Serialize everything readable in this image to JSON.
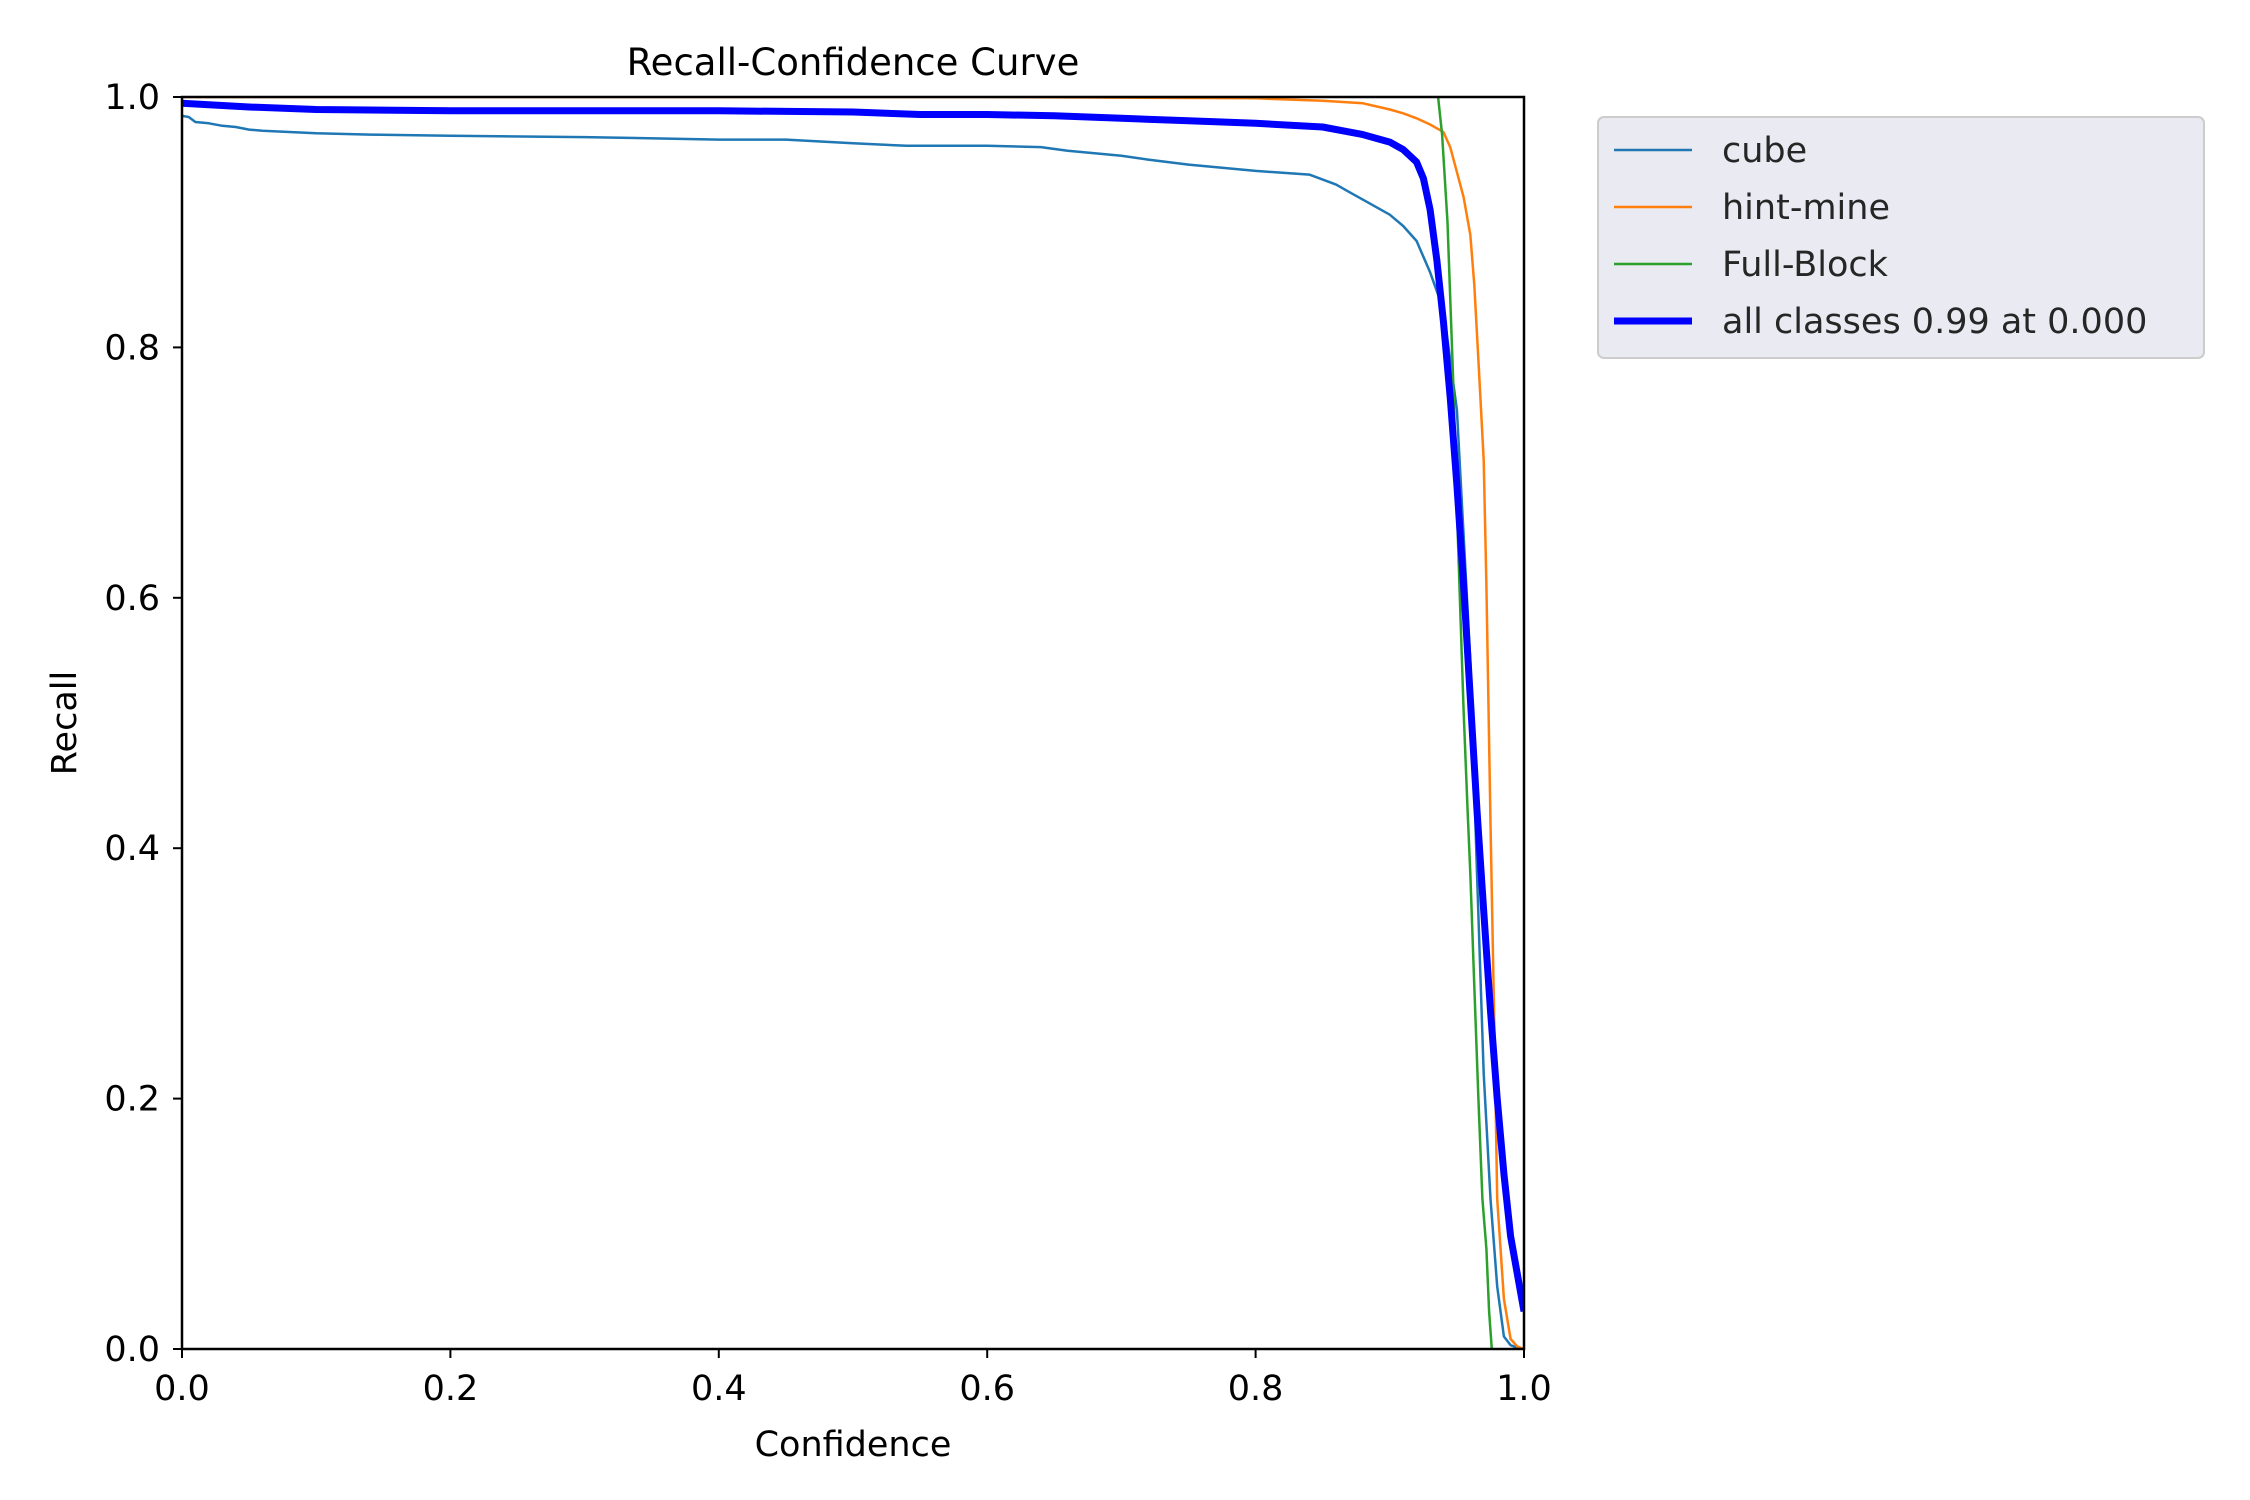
{
  "chart_data": {
    "type": "line",
    "title": "Recall-Confidence Curve",
    "xlabel": "Confidence",
    "ylabel": "Recall",
    "xlim": [
      0,
      1
    ],
    "ylim": [
      0,
      1
    ],
    "xticks": [
      "0.0",
      "0.2",
      "0.4",
      "0.6",
      "0.8",
      "1.0"
    ],
    "yticks": [
      "0.0",
      "0.2",
      "0.4",
      "0.6",
      "0.8",
      "1.0"
    ],
    "grid": false,
    "legend_position": "outside-top-right",
    "series": [
      {
        "name": "cube",
        "color": "#1f77b4",
        "width": 2.5,
        "x": [
          0.0,
          0.005,
          0.01,
          0.02,
          0.03,
          0.04,
          0.05,
          0.06,
          0.1,
          0.14,
          0.2,
          0.3,
          0.4,
          0.45,
          0.5,
          0.54,
          0.6,
          0.64,
          0.66,
          0.7,
          0.72,
          0.75,
          0.78,
          0.8,
          0.84,
          0.86,
          0.87,
          0.88,
          0.89,
          0.9,
          0.91,
          0.92,
          0.93,
          0.94,
          0.95,
          0.96,
          0.965,
          0.97,
          0.975,
          0.98,
          0.985,
          0.99,
          0.995,
          1.0
        ],
        "y": [
          0.985,
          0.984,
          0.98,
          0.979,
          0.977,
          0.976,
          0.974,
          0.973,
          0.971,
          0.97,
          0.969,
          0.968,
          0.966,
          0.966,
          0.963,
          0.961,
          0.961,
          0.96,
          0.957,
          0.953,
          0.95,
          0.946,
          0.943,
          0.941,
          0.938,
          0.93,
          0.924,
          0.918,
          0.912,
          0.906,
          0.897,
          0.885,
          0.86,
          0.83,
          0.75,
          0.55,
          0.38,
          0.22,
          0.12,
          0.05,
          0.01,
          0.003,
          0.001,
          0.0
        ]
      },
      {
        "name": "hint-mine",
        "color": "#ff7f0e",
        "width": 2.5,
        "x": [
          0.0,
          0.2,
          0.4,
          0.6,
          0.8,
          0.85,
          0.88,
          0.9,
          0.91,
          0.92,
          0.93,
          0.94,
          0.945,
          0.95,
          0.955,
          0.96,
          0.963,
          0.966,
          0.97,
          0.972,
          0.975,
          0.978,
          0.98,
          0.985,
          0.99,
          0.995,
          1.0
        ],
        "y": [
          1.0,
          1.0,
          1.0,
          1.0,
          0.999,
          0.997,
          0.995,
          0.99,
          0.987,
          0.983,
          0.978,
          0.972,
          0.96,
          0.94,
          0.92,
          0.89,
          0.85,
          0.79,
          0.71,
          0.61,
          0.42,
          0.25,
          0.12,
          0.04,
          0.008,
          0.002,
          0.0
        ]
      },
      {
        "name": "Full-Block",
        "color": "#2ca02c",
        "width": 2.5,
        "x": [
          0.936,
          0.939,
          0.943,
          0.947,
          0.951,
          0.955,
          0.958,
          0.96,
          0.963,
          0.966,
          0.969,
          0.972,
          0.974,
          0.976
        ],
        "y": [
          1.0,
          0.97,
          0.9,
          0.78,
          0.64,
          0.51,
          0.43,
          0.38,
          0.29,
          0.2,
          0.12,
          0.08,
          0.03,
          0.0
        ]
      },
      {
        "name": "all classes 0.99 at 0.000",
        "color": "#0000ff",
        "width": 7,
        "x": [
          0.0,
          0.05,
          0.1,
          0.2,
          0.3,
          0.4,
          0.5,
          0.55,
          0.6,
          0.65,
          0.7,
          0.75,
          0.8,
          0.85,
          0.88,
          0.9,
          0.91,
          0.92,
          0.925,
          0.93,
          0.935,
          0.94,
          0.945,
          0.95,
          0.955,
          0.96,
          0.965,
          0.97,
          0.975,
          0.98,
          0.985,
          0.99,
          0.995,
          1.0
        ],
        "y": [
          0.995,
          0.992,
          0.99,
          0.989,
          0.989,
          0.989,
          0.988,
          0.986,
          0.986,
          0.985,
          0.983,
          0.981,
          0.979,
          0.976,
          0.97,
          0.964,
          0.958,
          0.948,
          0.935,
          0.91,
          0.87,
          0.82,
          0.76,
          0.69,
          0.61,
          0.52,
          0.43,
          0.35,
          0.27,
          0.2,
          0.14,
          0.09,
          0.06,
          0.03
        ]
      }
    ]
  }
}
